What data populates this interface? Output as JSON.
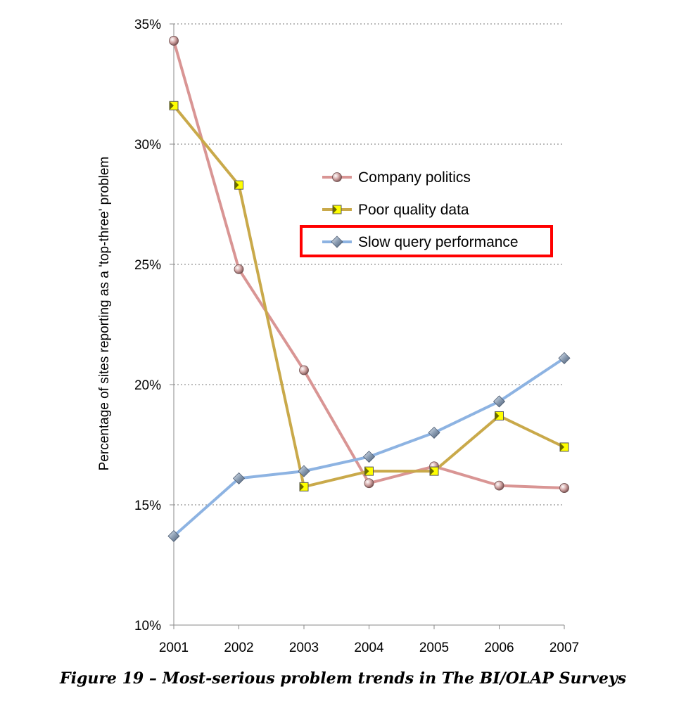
{
  "chart_data": {
    "type": "line",
    "title": "",
    "xlabel": "",
    "ylabel": "Percentage of sites reporting as a 'top-three' problem",
    "x": [
      "2001",
      "2002",
      "2003",
      "2004",
      "2005",
      "2006",
      "2007"
    ],
    "ylim": [
      10,
      35
    ],
    "yticks": [
      "10%",
      "15%",
      "20%",
      "25%",
      "30%",
      "35%"
    ],
    "grid": true,
    "legend_position": "center-right",
    "highlighted_legend_entry": "Slow query performance",
    "highlight_color": "#ff0000",
    "series": [
      {
        "name": "Company politics",
        "color": "#d99594",
        "marker": "circle",
        "values": [
          34.3,
          24.8,
          20.6,
          15.9,
          16.6,
          15.8,
          15.7
        ]
      },
      {
        "name": "Poor quality data",
        "color": "#c9a94a",
        "marker": "square",
        "values": [
          31.6,
          28.3,
          15.75,
          16.4,
          16.4,
          18.7,
          17.4
        ]
      },
      {
        "name": "Slow query performance",
        "color": "#8db3e2",
        "marker": "diamond",
        "values": [
          13.7,
          16.1,
          16.4,
          17.0,
          18.0,
          19.3,
          21.1
        ]
      }
    ]
  },
  "caption": "Figure 19 – Most-serious problem trends in The BI/OLAP Surveys"
}
